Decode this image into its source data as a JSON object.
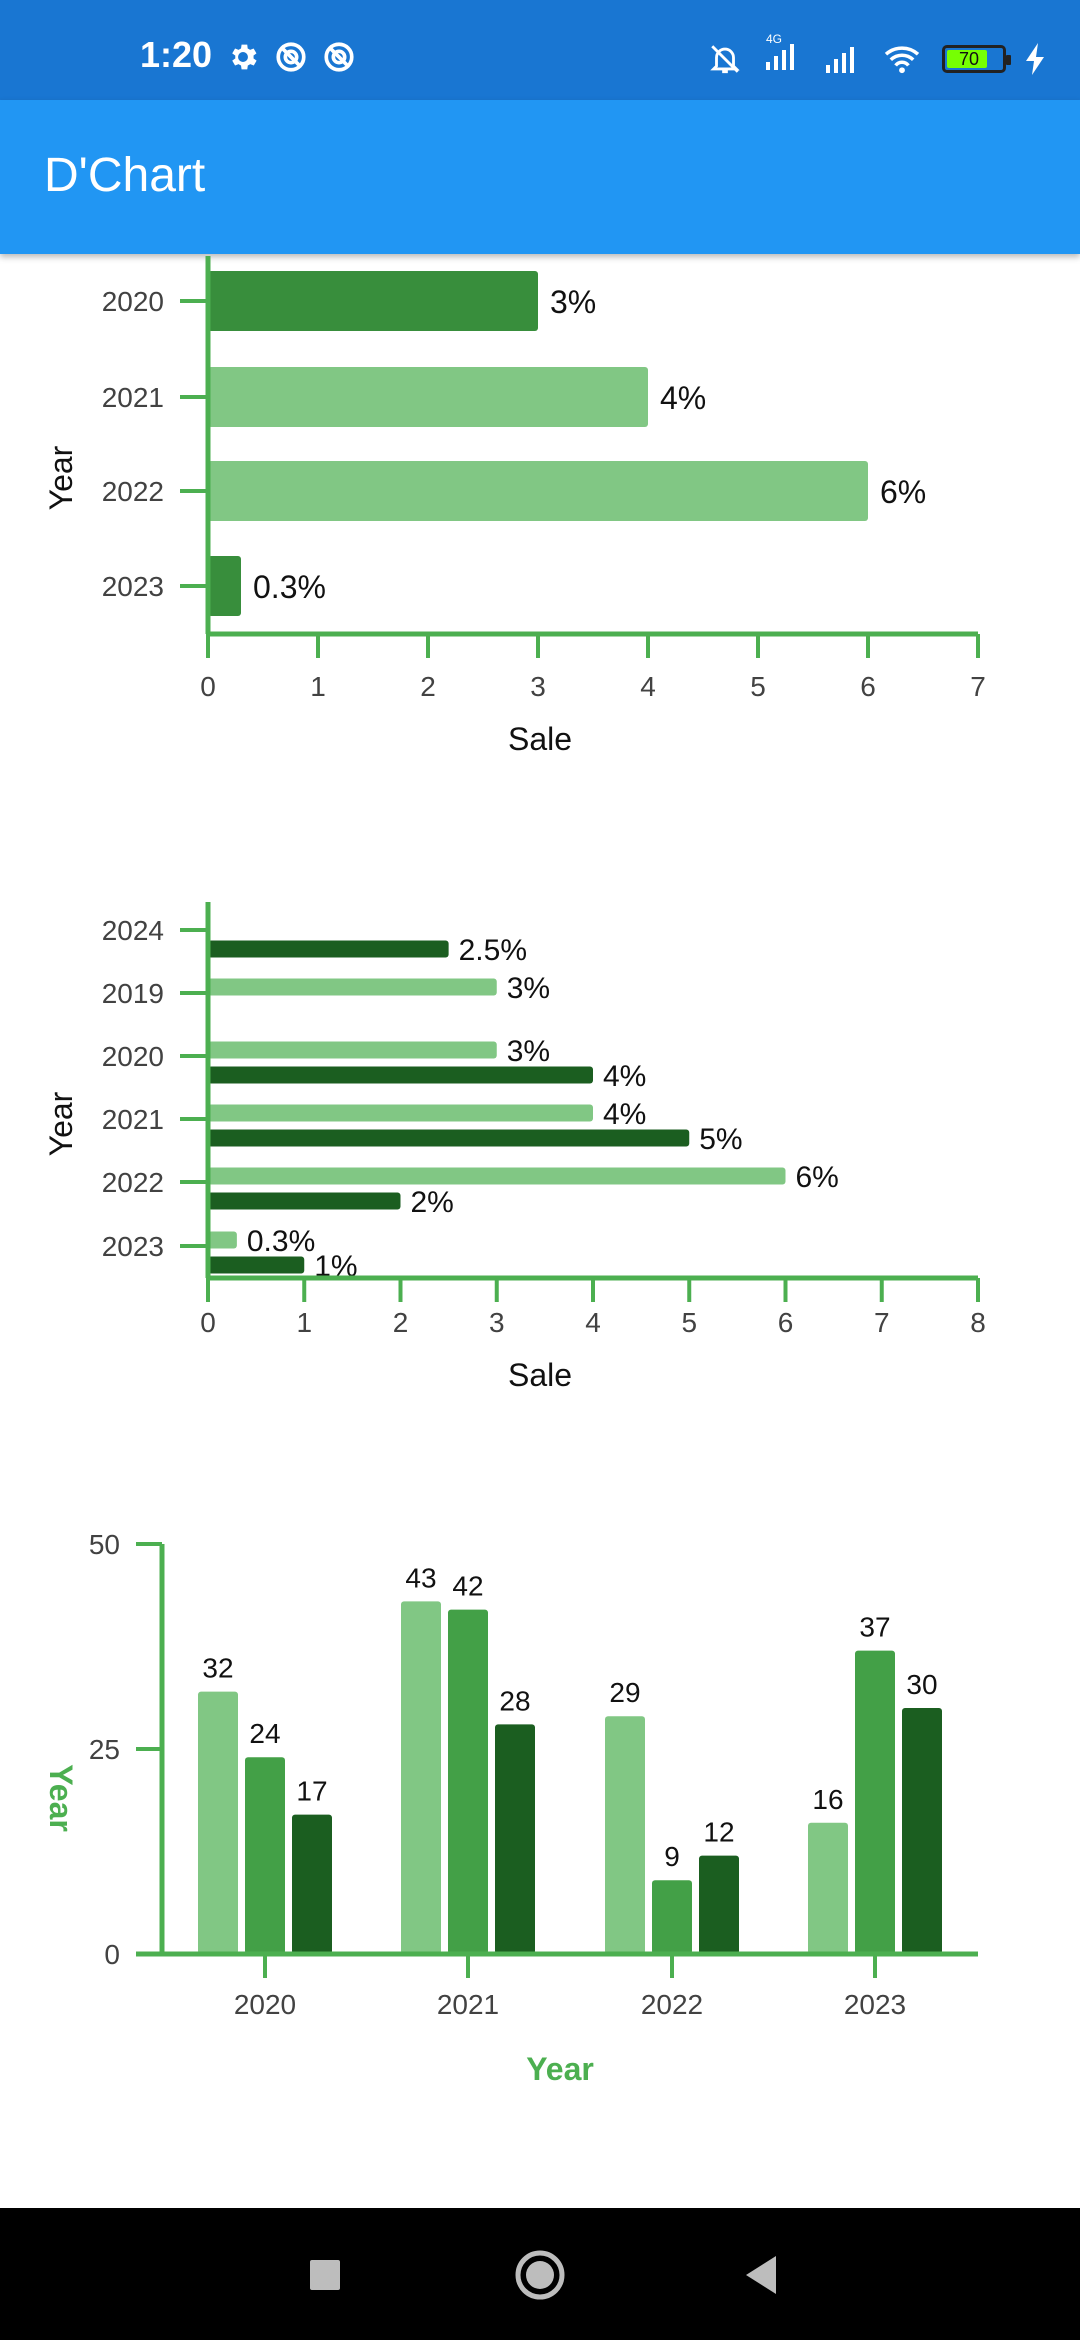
{
  "status_bar": {
    "time": "1:20",
    "network_label": "4G",
    "battery": "70",
    "icons": [
      "gear-icon",
      "sync-icon",
      "sync-icon",
      "bell-off-icon",
      "signal-icon",
      "signal-icon",
      "wifi-icon",
      "battery-icon",
      "charging-icon"
    ]
  },
  "app_bar": {
    "title": "D'Chart"
  },
  "colors": {
    "light": "#81c784",
    "medium": "#43a047",
    "dark": "#1b5e20",
    "bar1": "#388e3c",
    "axis": "#4caf50",
    "appbar": "#2196f3",
    "statusbar": "#1976d2"
  },
  "chart_data": [
    {
      "type": "bar",
      "orientation": "horizontal",
      "categories": [
        "2020",
        "2021",
        "2022",
        "2023"
      ],
      "values": [
        3,
        4,
        6,
        0.3
      ],
      "labels": [
        "3%",
        "4%",
        "6%",
        "0.3%"
      ],
      "bar_colors": [
        "#388e3c",
        "#81c784",
        "#81c784",
        "#388e3c"
      ],
      "xlabel": "Sale",
      "ylabel": "Year",
      "xlim": [
        0,
        7
      ],
      "xticks": [
        "0",
        "1",
        "2",
        "3",
        "4",
        "5",
        "6",
        "7"
      ]
    },
    {
      "type": "bar",
      "orientation": "horizontal",
      "categories": [
        "2024",
        "2019",
        "2020",
        "2021",
        "2022",
        "2023"
      ],
      "series": [
        {
          "values": [
            null,
            3,
            3,
            4,
            6,
            0.3
          ],
          "labels": [
            "",
            "3%",
            "3%",
            "4%",
            "6%",
            "0.3%"
          ],
          "color": "#81c784"
        },
        {
          "values": [
            2.5,
            null,
            4,
            5,
            2,
            1
          ],
          "labels": [
            "2.5%",
            "",
            "4%",
            "5%",
            "2%",
            "1%"
          ],
          "color": "#1b5e20"
        }
      ],
      "xlabel": "Sale",
      "ylabel": "Year",
      "xlim": [
        0,
        8
      ],
      "xticks": [
        "0",
        "1",
        "2",
        "3",
        "4",
        "5",
        "6",
        "7",
        "8"
      ]
    },
    {
      "type": "bar",
      "orientation": "vertical",
      "categories": [
        "2020",
        "2021",
        "2022",
        "2023"
      ],
      "series": [
        {
          "values": [
            32,
            43,
            29,
            16
          ],
          "color": "#81c784"
        },
        {
          "values": [
            24,
            42,
            9,
            37
          ],
          "color": "#43a047"
        },
        {
          "values": [
            17,
            28,
            12,
            30
          ],
          "color": "#1b5e20"
        }
      ],
      "xlabel": "Year",
      "ylabel": "Year",
      "ylim": [
        0,
        50
      ],
      "yticks": [
        "0",
        "25",
        "50"
      ]
    }
  ]
}
